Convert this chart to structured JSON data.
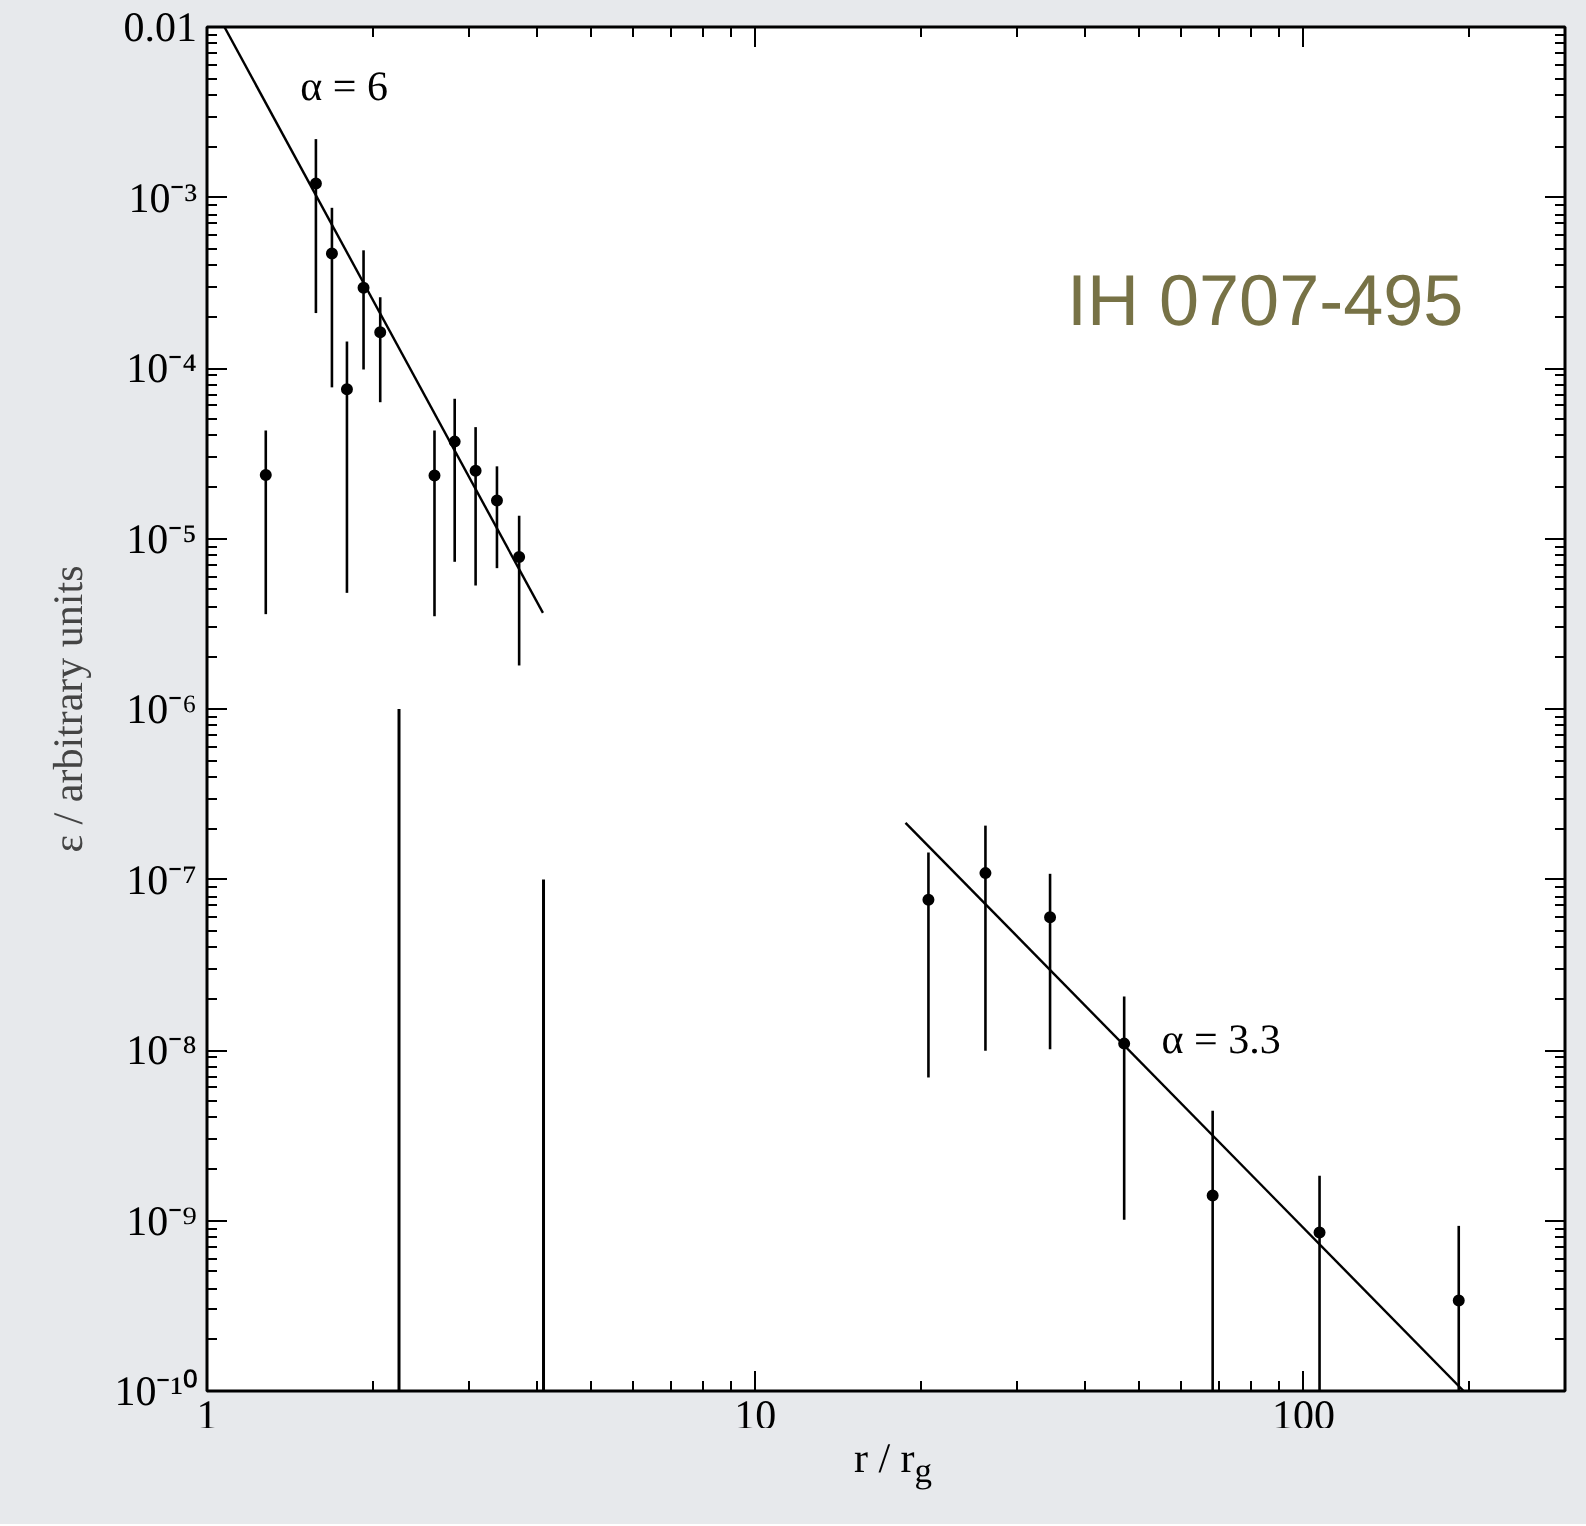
{
  "chart_data": {
    "type": "scatter",
    "xlabel": "r / r$_{g}$",
    "ylabel": "ε / arbitrary units",
    "log": "xy",
    "grid": false,
    "xlim": [
      1,
      300
    ],
    "ylim": [
      1e-10,
      0.01
    ],
    "xticks": [
      1,
      10,
      100
    ],
    "yticks": [
      {
        "value": 1e-10,
        "label": "10⁻¹⁰"
      },
      {
        "value": 1e-09,
        "label": "10⁻⁹"
      },
      {
        "value": 1e-08,
        "label": "10⁻⁸"
      },
      {
        "value": 1e-07,
        "label": "10⁻⁷"
      },
      {
        "value": 1e-06,
        "label": "10⁻⁶"
      },
      {
        "value": 1e-05,
        "label": "10⁻⁵"
      },
      {
        "value": 0.0001,
        "label": "10⁻⁴"
      },
      {
        "value": 0.001,
        "label": "10⁻³"
      },
      0.01
    ],
    "annotations": [
      "IH 0707-495"
    ],
    "series": [
      {
        "color": "#000000",
        "marker": "circle",
        "x": [
          1.28,
          1.58,
          1.69,
          1.8,
          1.93,
          2.07,
          2.6,
          2.83,
          3.09,
          3.38,
          3.71,
          20.7,
          26.3,
          34.5,
          47.1,
          68.3,
          107,
          192
        ],
        "values": [
          2.36e-05,
          0.00121,
          0.00047,
          7.5e-05,
          0.000296,
          0.000162,
          2.34e-05,
          3.7e-05,
          2.5e-05,
          1.67e-05,
          7.8e-06,
          7.6e-08,
          1.09e-07,
          6e-08,
          1.09e-08,
          1.4e-09,
          8.5e-10,
          3.4e-10
        ],
        "errors": [
          [
            3.6e-06,
            4.3e-05
          ],
          [
            0.00021,
            0.0022
          ],
          [
            7.7e-05,
            0.00087
          ],
          [
            4.8e-06,
            0.000143
          ],
          [
            9.8e-05,
            0.00049
          ],
          [
            6.3e-05,
            0.00026
          ],
          [
            3.5e-06,
            4.3e-05
          ],
          [
            7.3e-06,
            6.6e-05
          ],
          [
            5.3e-06,
            4.5e-05
          ],
          [
            6.7e-06,
            2.65e-05
          ],
          [
            1.8e-06,
            1.36e-05
          ],
          [
            6.9e-09,
            1.44e-07
          ],
          [
            9.9e-09,
            2.07e-07
          ],
          [
            1.01e-08,
            1.08e-07
          ],
          [
            1.01e-09,
            2.06e-08
          ],
          [
            1e-10,
            4.4e-09
          ],
          [
            1e-10,
            1.83e-09
          ],
          [
            1e-10,
            9.3e-10
          ]
        ]
      },
      {
        "type": "bar",
        "color": "#000000",
        "x": [
          2.24,
          4.11
        ],
        "base": [
          1e-10,
          1e-10
        ],
        "values": [
          9.999e-07,
          9.999e-08
        ]
      },
      {
        "type": "line",
        "name": "α = 6",
        "color": "#000000",
        "x": [
          1.076,
          4.1
        ],
        "values": [
          0.01,
          3.66e-06
        ]
      },
      {
        "type": "line",
        "name": "α = 3.3",
        "color": "#000000",
        "x": [
          18.8,
          196
        ],
        "values": [
          2.15e-07,
          1e-10
        ]
      }
    ]
  }
}
